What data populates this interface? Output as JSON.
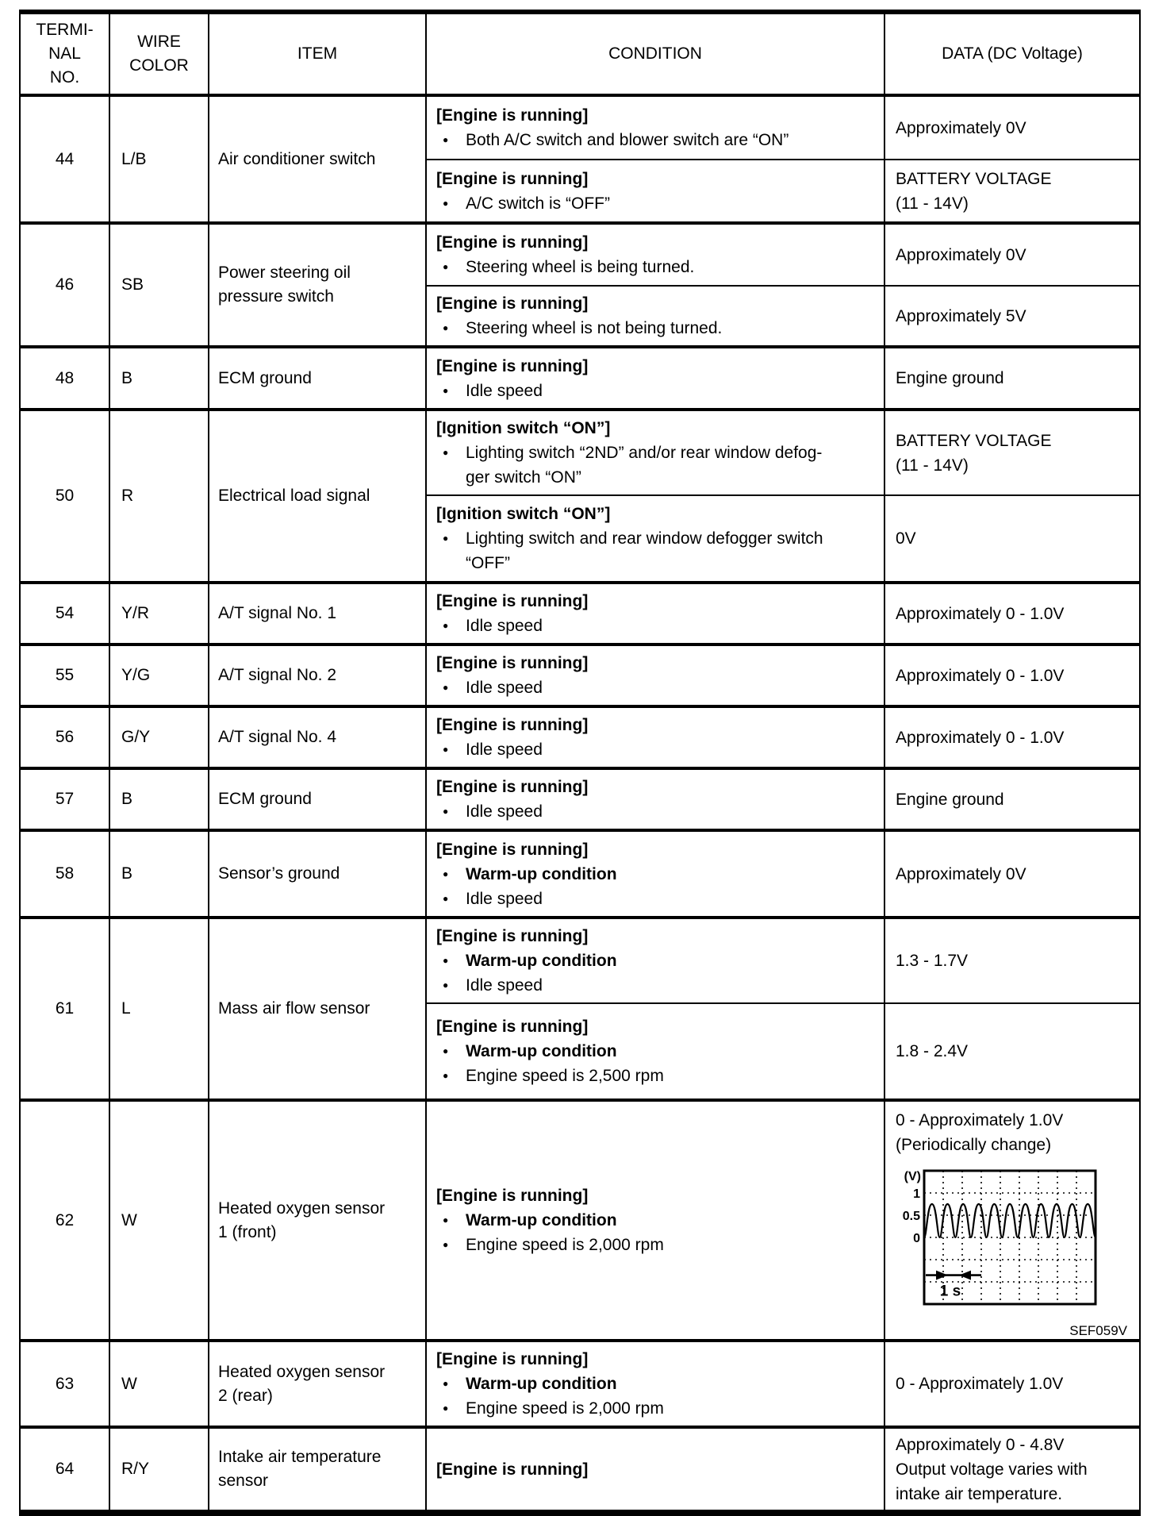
{
  "table": {
    "headers": {
      "terminal_no": "TERMI-\nNAL\nNO.",
      "wire_color": "WIRE\nCOLOR",
      "item": "ITEM",
      "condition": "CONDITION",
      "data": "DATA (DC Voltage)"
    },
    "rows": [
      {
        "terminal": "44",
        "wire": "L/B",
        "item": "Air conditioner switch",
        "subs": [
          {
            "cond": {
              "header": "[Engine is running]",
              "bullets": [
                {
                  "t": "Both A/C switch and blower switch are “ON”",
                  "bold": false
                }
              ]
            },
            "data": {
              "text": "Approximately 0V"
            }
          },
          {
            "cond": {
              "header": "[Engine is running]",
              "bullets": [
                {
                  "t": "A/C switch is “OFF”",
                  "bold": false
                }
              ]
            },
            "data": {
              "text": "BATTERY VOLTAGE\n(11 - 14V)"
            }
          }
        ]
      },
      {
        "terminal": "46",
        "wire": "SB",
        "item": "Power steering oil\npressure switch",
        "subs": [
          {
            "cond": {
              "header": "[Engine is running]",
              "bullets": [
                {
                  "t": "Steering wheel is being turned.",
                  "bold": false
                }
              ]
            },
            "data": {
              "text": "Approximately 0V"
            }
          },
          {
            "cond": {
              "header": "[Engine is running]",
              "bullets": [
                {
                  "t": "Steering wheel is not being turned.",
                  "bold": false
                }
              ]
            },
            "data": {
              "text": "Approximately 5V"
            }
          }
        ]
      },
      {
        "terminal": "48",
        "wire": "B",
        "item": "ECM ground",
        "subs": [
          {
            "cond": {
              "header": "[Engine is running]",
              "bullets": [
                {
                  "t": "Idle speed",
                  "bold": false
                }
              ]
            },
            "data": {
              "text": "Engine ground"
            }
          }
        ]
      },
      {
        "terminal": "50",
        "wire": "R",
        "item": "Electrical load signal",
        "subs": [
          {
            "cond": {
              "header": "[Ignition switch “ON”]",
              "bullets": [
                {
                  "t": "Lighting switch “2ND” and/or rear window defog-\nger switch “ON”",
                  "bold": false
                }
              ]
            },
            "data": {
              "text": "BATTERY VOLTAGE\n(11 - 14V)"
            }
          },
          {
            "cond": {
              "header": "[Ignition switch “ON”]",
              "bullets": [
                {
                  "t": "Lighting switch and rear window defogger switch\n“OFF”",
                  "bold": false
                }
              ]
            },
            "data": {
              "text": "0V"
            }
          }
        ]
      },
      {
        "terminal": "54",
        "wire": "Y/R",
        "item": "A/T signal No. 1",
        "subs": [
          {
            "cond": {
              "header": "[Engine is running]",
              "bullets": [
                {
                  "t": "Idle speed",
                  "bold": false
                }
              ]
            },
            "data": {
              "text": "Approximately 0 - 1.0V"
            }
          }
        ]
      },
      {
        "terminal": "55",
        "wire": "Y/G",
        "item": "A/T signal No. 2",
        "subs": [
          {
            "cond": {
              "header": "[Engine is running]",
              "bullets": [
                {
                  "t": "Idle speed",
                  "bold": false
                }
              ]
            },
            "data": {
              "text": "Approximately 0 - 1.0V"
            }
          }
        ]
      },
      {
        "terminal": "56",
        "wire": "G/Y",
        "item": "A/T signal No. 4",
        "subs": [
          {
            "cond": {
              "header": "[Engine is running]",
              "bullets": [
                {
                  "t": "Idle speed",
                  "bold": false
                }
              ]
            },
            "data": {
              "text": "Approximately 0 - 1.0V"
            }
          }
        ]
      },
      {
        "terminal": "57",
        "wire": "B",
        "item": "ECM ground",
        "subs": [
          {
            "cond": {
              "header": "[Engine is running]",
              "bullets": [
                {
                  "t": "Idle speed",
                  "bold": false
                }
              ]
            },
            "data": {
              "text": "Engine ground"
            }
          }
        ]
      },
      {
        "terminal": "58",
        "wire": "B",
        "item": "Sensor’s ground",
        "subs": [
          {
            "cond": {
              "header": "[Engine is running]",
              "bullets": [
                {
                  "t": "Warm-up condition",
                  "bold": true
                },
                {
                  "t": "Idle speed",
                  "bold": false
                }
              ]
            },
            "data": {
              "text": "Approximately 0V"
            }
          }
        ]
      },
      {
        "terminal": "61",
        "wire": "L",
        "item": "Mass air flow sensor",
        "subs": [
          {
            "cond": {
              "header": "[Engine is running]",
              "bullets": [
                {
                  "t": "Warm-up condition",
                  "bold": true
                },
                {
                  "t": "Idle speed",
                  "bold": false
                }
              ]
            },
            "data": {
              "text": "1.3 - 1.7V"
            }
          },
          {
            "cond": {
              "header": "[Engine is running]",
              "bullets": [
                {
                  "t": "Warm-up condition",
                  "bold": true
                },
                {
                  "t": "Engine speed is 2,500 rpm",
                  "bold": false
                }
              ]
            },
            "data": {
              "text": "1.8 - 2.4V"
            }
          }
        ]
      },
      {
        "terminal": "62",
        "wire": "W",
        "item": "Heated oxygen sensor\n1 (front)",
        "subs": [
          {
            "cond": {
              "header": "[Engine is running]",
              "bullets": [
                {
                  "t": "Warm-up condition",
                  "bold": true
                },
                {
                  "t": "Engine speed is 2,000 rpm",
                  "bold": false
                }
              ]
            },
            "data": {
              "text": "0 - Approximately 1.0V\n(Periodically change)",
              "waveform": {
                "type": "line",
                "unit_label": "(V)",
                "y_ticks": [
                  "1",
                  "0.5",
                  "0"
                ],
                "y_tick_values": [
                  1,
                  0.5,
                  0
                ],
                "signal_v_min": 0,
                "signal_v_max": 0.75,
                "cycles_shown": 11,
                "grid_cols": 9,
                "grid_rows": 6,
                "time_span_label": "1 s",
                "figure_code": "SEF059V"
              }
            }
          }
        ]
      },
      {
        "terminal": "63",
        "wire": "W",
        "item": "Heated oxygen sensor\n2 (rear)",
        "subs": [
          {
            "cond": {
              "header": "[Engine is running]",
              "bullets": [
                {
                  "t": "Warm-up condition",
                  "bold": true
                },
                {
                  "t": "Engine speed is 2,000 rpm",
                  "bold": false
                }
              ]
            },
            "data": {
              "text": "0 - Approximately 1.0V"
            }
          }
        ]
      },
      {
        "terminal": "64",
        "wire": "R/Y",
        "item": "Intake air temperature\nsensor",
        "subs": [
          {
            "cond": {
              "header": "[Engine is running]",
              "bullets": []
            },
            "data": {
              "text": "Approximately 0 - 4.8V\nOutput voltage varies with\nintake air temperature."
            }
          }
        ]
      }
    ]
  }
}
